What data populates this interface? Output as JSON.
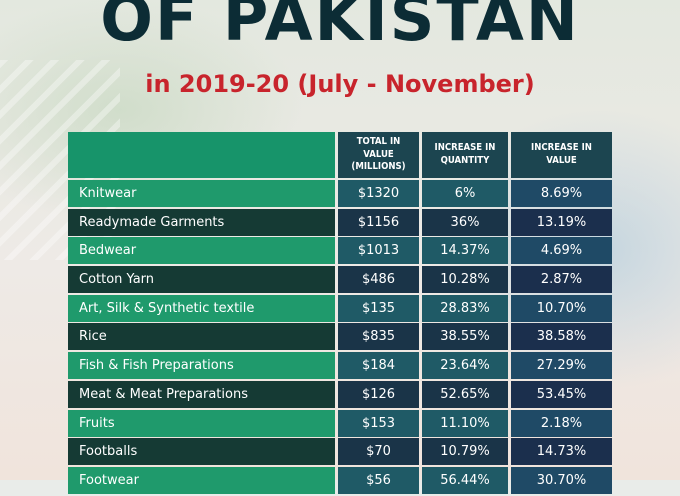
{
  "header": {
    "title": "OF PAKISTAN",
    "subtitle": "in 2019-20 (July - November)"
  },
  "table": {
    "columns": [
      "",
      "TOTAL IN VALUE\n(MILLIONS)",
      "INCREASE IN\nQUANTITY",
      "INCREASE IN\nVALUE"
    ],
    "rows": [
      {
        "item": "Knitwear",
        "value": "$1320",
        "quantity": "6%",
        "increase_value": "8.69%"
      },
      {
        "item": "Readymade Garments",
        "value": "$1156",
        "quantity": "36%",
        "increase_value": "13.19%"
      },
      {
        "item": "Bedwear",
        "value": "$1013",
        "quantity": "14.37%",
        "increase_value": "4.69%"
      },
      {
        "item": "Cotton Yarn",
        "value": "$486",
        "quantity": "10.28%",
        "increase_value": "2.87%"
      },
      {
        "item": "Art, Silk & Synthetic textile",
        "value": "$135",
        "quantity": "28.83%",
        "increase_value": "10.70%"
      },
      {
        "item": "Rice",
        "value": "$835",
        "quantity": "38.55%",
        "increase_value": "38.58%"
      },
      {
        "item": "Fish & Fish Preparations",
        "value": "$184",
        "quantity": "23.64%",
        "increase_value": "27.29%"
      },
      {
        "item": "Meat & Meat Preparations",
        "value": "$126",
        "quantity": "52.65%",
        "increase_value": "53.45%"
      },
      {
        "item": "Fruits",
        "value": "$153",
        "quantity": "11.10%",
        "increase_value": "2.18%"
      },
      {
        "item": "Footballs",
        "value": "$70",
        "quantity": "10.79%",
        "increase_value": "14.73%"
      },
      {
        "item": "Footwear",
        "value": "$56",
        "quantity": "56.44%",
        "increase_value": "30.70%"
      }
    ]
  },
  "colors": {
    "title": "#0c2c35",
    "subtitle": "#c8242c",
    "green_row": "#1f9a6c",
    "dark_row": "#153a34",
    "value_cell": "#1f5a66"
  }
}
